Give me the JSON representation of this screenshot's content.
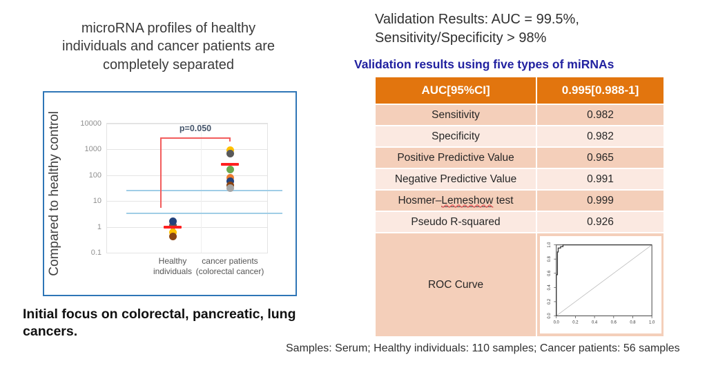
{
  "left": {
    "title_line1": "microRNA profiles of healthy",
    "title_line2": "individuals and cancer patients are",
    "title_line3": "completely separated",
    "focus_line1": "Initial focus on colorectal, pancreatic, lung",
    "focus_line2": "cancers."
  },
  "right": {
    "heading_line1": "Validation Results: AUC = 99.5%,",
    "heading_line2": "Sensitivity/Specificity > 98%",
    "subtitle": "Validation results using five types of miRNAs",
    "table": {
      "header": [
        "AUC[95%CI]",
        "0.995[0.988-1]"
      ],
      "rows": [
        [
          "Sensitivity",
          "0.982"
        ],
        [
          "Specificity",
          "0.982"
        ],
        [
          "Positive Predictive Value",
          "0.965"
        ],
        [
          "Negative Predictive Value",
          "0.991"
        ],
        [
          "Hosmer–Lemeshow test",
          "0.999"
        ],
        [
          "Pseudo R-squared",
          "0.926"
        ]
      ],
      "spellcheck_word": "Lemeshow",
      "roc_row_label": "ROC Curve",
      "header_bg": "#e2750e",
      "row_bg_odd": "#f4cfba",
      "row_bg_even": "#fbe9e1"
    },
    "samples_note": "Samples: Serum; Healthy individuals: 110 samples; Cancer patients: 56 samples"
  },
  "chart_data": [
    {
      "type": "scatter",
      "title": "",
      "ylabel": "Compared to healthy control",
      "y_scale": "log",
      "ylim": [
        0.1,
        10000
      ],
      "y_ticks": [
        "10000",
        "1000",
        "100",
        "10",
        "1",
        "0.1"
      ],
      "y_tick_values": [
        10000,
        1000,
        100,
        10,
        1,
        0.1
      ],
      "categories": [
        [
          "Healthy",
          "individuals"
        ],
        [
          "cancer patients",
          "(colorectal cancer)"
        ]
      ],
      "series": [
        {
          "name": "Healthy individuals",
          "median": 1.0,
          "points": [
            {
              "v": 1.15,
              "color": "#5a5a5a"
            },
            {
              "v": 1.65,
              "color": "#24427c"
            },
            {
              "v": 0.65,
              "color": "#ffc000"
            },
            {
              "v": 0.45,
              "color": "#8a4413"
            }
          ]
        },
        {
          "name": "cancer patients (colorectal cancer)",
          "median": 260,
          "points": [
            {
              "v": 950,
              "color": "#ffc000"
            },
            {
              "v": 690,
              "color": "#595959"
            },
            {
              "v": 175,
              "color": "#6aa84f"
            },
            {
              "v": 83,
              "color": "#ed7d31"
            },
            {
              "v": 61,
              "color": "#24427c"
            },
            {
              "v": 42,
              "color": "#8a4413"
            },
            {
              "v": 33,
              "color": "#a6a6a6"
            }
          ]
        }
      ],
      "median_color": "#ff2020",
      "threshold_lines": [
        {
          "v": 25,
          "color": "#9fcde6"
        },
        {
          "v": 3.3,
          "color": "#9fcde6"
        }
      ],
      "p_annotation": {
        "text": "p=0.050",
        "color": "#44546a",
        "line_color": "#f25c5c",
        "top_value": 3000,
        "bottom_value": 5.5,
        "tick_value": 2000
      }
    },
    {
      "type": "line",
      "title": "ROC Curve",
      "xlim": [
        0,
        1
      ],
      "ylim": [
        0,
        1
      ],
      "x_ticks": [
        0.0,
        0.2,
        0.4,
        0.6,
        0.8,
        1.0
      ],
      "y_ticks": [
        0.0,
        0.2,
        0.4,
        0.6,
        0.8,
        1.0
      ],
      "roc_points": [
        [
          0,
          0
        ],
        [
          0,
          0.58
        ],
        [
          0.012,
          0.58
        ],
        [
          0.012,
          0.9
        ],
        [
          0.02,
          0.9
        ],
        [
          0.02,
          0.955
        ],
        [
          0.045,
          0.955
        ],
        [
          0.045,
          0.975
        ],
        [
          0.07,
          0.975
        ],
        [
          0.07,
          1.0
        ],
        [
          1,
          1
        ]
      ],
      "reference_line": [
        [
          0,
          0
        ],
        [
          1,
          1
        ]
      ]
    }
  ]
}
